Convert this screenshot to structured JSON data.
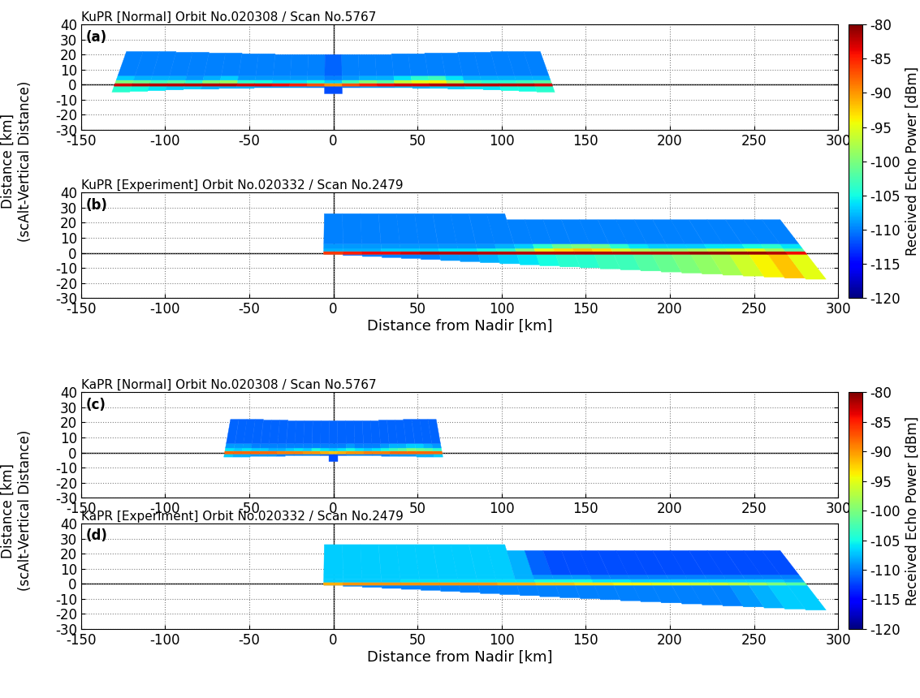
{
  "chart_data": [
    {
      "type": "heatmap",
      "label": "(a)",
      "title": "KuPR [Normal] Orbit No.020308 / Scan No.5767",
      "ylabel": "Distance [km]\n(scAlt-Vertical Distance)",
      "colorbar": {
        "label": "Received Echo Power [dBm]",
        "lim": [
          -120,
          -80
        ],
        "ticks": [
          -120,
          -115,
          -110,
          -105,
          -100,
          -95,
          -90,
          -85,
          -80
        ]
      },
      "xlim": [
        -150,
        300
      ],
      "xticks": [
        -150,
        -100,
        -50,
        0,
        50,
        100,
        150,
        200,
        250,
        300
      ],
      "ylim": [
        -30,
        40
      ],
      "yticks": [
        -30,
        -20,
        -10,
        0,
        10,
        20,
        30,
        40
      ],
      "grid": true,
      "y_edges": [
        -1,
        1,
        3,
        6
      ],
      "x": [
        -124.8,
        -114.4,
        -104.0,
        -93.6,
        -83.2,
        -72.8,
        -62.4,
        -52.0,
        -41.6,
        -31.2,
        -20.8,
        -10.4,
        0,
        10.4,
        20.8,
        31.2,
        41.6,
        52.0,
        62.4,
        72.8,
        83.2,
        93.6,
        104.0,
        114.4,
        124.8
      ],
      "top": [
        22,
        22,
        22,
        21.5,
        21.5,
        21,
        21,
        20.5,
        20.5,
        20,
        20,
        20,
        20,
        20,
        20,
        20,
        20.5,
        20.5,
        21,
        21,
        21.5,
        21.5,
        22,
        22,
        22
      ],
      "bottom": [
        -5,
        -4.5,
        -4,
        -3.5,
        -3,
        -3,
        -2.5,
        -2.5,
        -2,
        -2,
        -2,
        -2,
        -6,
        -2,
        -2,
        -2,
        -2,
        -2.5,
        -2.5,
        -3,
        -3,
        -3.5,
        -4,
        -4.5,
        -5
      ],
      "cells": [
        [
          -104,
          -83,
          -100,
          -107,
          -110
        ],
        [
          -105,
          -82,
          -101,
          -108,
          -110
        ],
        [
          -106,
          -82,
          -103,
          -108,
          -110
        ],
        [
          -107,
          -82,
          -102,
          -108,
          -110
        ],
        [
          -107,
          -82,
          -104,
          -109,
          -110
        ],
        [
          -108,
          -82,
          -100,
          -108,
          -110
        ],
        [
          -108,
          -82,
          -99,
          -107,
          -110
        ],
        [
          -108,
          -83,
          -104,
          -109,
          -110
        ],
        [
          -109,
          -83,
          -105,
          -109,
          -110
        ],
        [
          -109,
          -84,
          -106,
          -109,
          -110
        ],
        [
          -109,
          -85,
          -106,
          -109,
          -110
        ],
        [
          -110,
          -87,
          -105,
          -109,
          -110
        ],
        [
          -112,
          -90,
          -107,
          -110,
          -111
        ],
        [
          -110,
          -87,
          -103,
          -109,
          -110
        ],
        [
          -109,
          -85,
          -100,
          -108,
          -110
        ],
        [
          -109,
          -84,
          -102,
          -108,
          -110
        ],
        [
          -108,
          -83,
          -97,
          -106,
          -110
        ],
        [
          -108,
          -83,
          -95,
          -104,
          -110
        ],
        [
          -107,
          -82,
          -94,
          -103,
          -110
        ],
        [
          -107,
          -82,
          -98,
          -106,
          -110
        ],
        [
          -106,
          -82,
          -103,
          -108,
          -110
        ],
        [
          -106,
          -82,
          -104,
          -108,
          -110
        ],
        [
          -105,
          -82,
          -104,
          -108,
          -110
        ],
        [
          -105,
          -82,
          -103,
          -108,
          -110
        ],
        [
          -104,
          -83,
          -102,
          -108,
          -110
        ]
      ]
    },
    {
      "type": "heatmap",
      "label": "(b)",
      "title": "KuPR [Experiment] Orbit No.020332 / Scan No.2479",
      "xlabel": "Distance from Nadir [km]",
      "xlim": [
        -150,
        300
      ],
      "xticks": [
        -150,
        -100,
        -50,
        0,
        50,
        100,
        150,
        200,
        250,
        300
      ],
      "ylim": [
        -30,
        40
      ],
      "yticks": [
        -30,
        -20,
        -10,
        0,
        10,
        20,
        30,
        40
      ],
      "grid": true,
      "y_edges": [
        -1,
        1,
        3,
        6
      ],
      "x": [
        0,
        11.5,
        22.9,
        34.4,
        45.8,
        57.3,
        68.8,
        80.2,
        91.7,
        103.1,
        114.6,
        126.0,
        137.5,
        149.0,
        160.4,
        171.9,
        183.3,
        194.8,
        206.3,
        217.7,
        229.2,
        240.6,
        252.1,
        263.5,
        275.0
      ],
      "top": [
        26,
        26,
        26,
        26,
        26,
        26,
        26,
        26,
        26,
        26,
        22,
        22,
        22,
        22,
        22,
        22,
        22,
        22,
        22,
        22,
        22,
        22,
        22,
        22,
        22
      ],
      "bottom": [
        -1,
        -1.7,
        -2.4,
        -3.1,
        -3.7,
        -4.4,
        -5.1,
        -5.8,
        -6.5,
        -7.2,
        -7.9,
        -8.6,
        -9.3,
        -9.9,
        -10.6,
        -11.3,
        -12,
        -12.7,
        -13.4,
        -14.1,
        -14.8,
        -15.4,
        -16.1,
        -16.8,
        -17.5
      ],
      "cells": [
        [
          -111,
          -86,
          -108,
          -109,
          -110
        ],
        [
          -111,
          -85,
          -108,
          -109,
          -110
        ],
        [
          -110,
          -84,
          -108,
          -109,
          -110
        ],
        [
          -110,
          -84,
          -107,
          -109,
          -110
        ],
        [
          -110,
          -83,
          -107,
          -109,
          -110
        ],
        [
          -110,
          -82,
          -107,
          -109,
          -110
        ],
        [
          -109,
          -82,
          -106,
          -109,
          -110
        ],
        [
          -109,
          -82,
          -106,
          -109,
          -110
        ],
        [
          -108,
          -82,
          -105,
          -109,
          -110
        ],
        [
          -107,
          -82,
          -104,
          -108,
          -110
        ],
        [
          -106,
          -82,
          -100,
          -107,
          -110
        ],
        [
          -105,
          -82,
          -95,
          -104,
          -110
        ],
        [
          -104,
          -82,
          -93,
          -101,
          -110
        ],
        [
          -104,
          -82,
          -92,
          -100,
          -110
        ],
        [
          -103,
          -82,
          -93,
          -101,
          -110
        ],
        [
          -103,
          -82,
          -96,
          -104,
          -110
        ],
        [
          -102,
          -82,
          -98,
          -106,
          -110
        ],
        [
          -101,
          -82,
          -99,
          -107,
          -110
        ],
        [
          -100,
          -82,
          -99,
          -107,
          -110
        ],
        [
          -99,
          -81,
          -98,
          -107,
          -110
        ],
        [
          -98,
          -81,
          -97,
          -106,
          -110
        ],
        [
          -96,
          -81,
          -96,
          -106,
          -110
        ],
        [
          -94,
          -81,
          -95,
          -105,
          -110
        ],
        [
          -92,
          -82,
          -98,
          -104,
          -110
        ],
        [
          -95,
          -84,
          -102,
          -106,
          -110
        ]
      ]
    },
    {
      "type": "heatmap",
      "label": "(c)",
      "title": "KaPR [Normal] Orbit No.020308 / Scan No.5767",
      "ylabel": "Distance [km]\n(scAlt-Vertical Distance)",
      "colorbar": {
        "label": "Received Echo Power [dBm]",
        "lim": [
          -120,
          -80
        ],
        "ticks": [
          -120,
          -115,
          -110,
          -105,
          -100,
          -95,
          -90,
          -85,
          -80
        ]
      },
      "xlim": [
        -150,
        300
      ],
      "xticks": [
        -150,
        -100,
        -50,
        0,
        50,
        100,
        150,
        200,
        250,
        300
      ],
      "ylim": [
        -30,
        40
      ],
      "yticks": [
        -30,
        -20,
        -10,
        0,
        10,
        20,
        30,
        40
      ],
      "grid": true,
      "y_edges": [
        -1,
        1,
        3,
        6
      ],
      "x": [
        -62.0,
        -56.8,
        -51.7,
        -46.5,
        -41.3,
        -36.2,
        -31.0,
        -25.8,
        -20.7,
        -15.5,
        -10.3,
        -5.2,
        0,
        5.2,
        10.3,
        15.5,
        20.7,
        25.8,
        31.0,
        36.2,
        41.3,
        46.5,
        51.7,
        56.8,
        62.0
      ],
      "top": [
        22,
        22,
        22,
        22,
        21.5,
        21.5,
        21.5,
        21,
        21,
        21,
        21,
        21,
        21,
        21,
        21,
        21,
        21,
        21,
        21.5,
        21.5,
        21.5,
        22,
        22,
        22,
        22
      ],
      "bottom": [
        -3,
        -3,
        -3,
        -2.5,
        -2.5,
        -2.5,
        -2.5,
        -2,
        -2,
        -2,
        -2,
        -2,
        -6,
        -2,
        -2,
        -2,
        -2,
        -2,
        -2.5,
        -2.5,
        -2.5,
        -2.5,
        -3,
        -3,
        -3
      ],
      "cells": [
        [
          -107,
          -88,
          -106,
          -109,
          -111
        ],
        [
          -108,
          -88,
          -107,
          -109,
          -111
        ],
        [
          -108,
          -88,
          -106,
          -109,
          -111
        ],
        [
          -109,
          -88,
          -107,
          -110,
          -111
        ],
        [
          -109,
          -88,
          -107,
          -110,
          -111
        ],
        [
          -109,
          -88,
          -108,
          -110,
          -111
        ],
        [
          -110,
          -89,
          -108,
          -110,
          -111
        ],
        [
          -110,
          -89,
          -107,
          -110,
          -111
        ],
        [
          -110,
          -89,
          -106,
          -110,
          -111
        ],
        [
          -110,
          -90,
          -107,
          -110,
          -111
        ],
        [
          -110,
          -90,
          -105,
          -110,
          -111
        ],
        [
          -111,
          -91,
          -106,
          -110,
          -111
        ],
        [
          -112,
          -92,
          -107,
          -110,
          -111
        ],
        [
          -111,
          -91,
          -106,
          -110,
          -111
        ],
        [
          -110,
          -90,
          -105,
          -109,
          -111
        ],
        [
          -110,
          -90,
          -106,
          -110,
          -111
        ],
        [
          -110,
          -89,
          -107,
          -110,
          -111
        ],
        [
          -110,
          -89,
          -106,
          -110,
          -111
        ],
        [
          -110,
          -89,
          -105,
          -109,
          -111
        ],
        [
          -109,
          -88,
          -103,
          -108,
          -111
        ],
        [
          -109,
          -88,
          -102,
          -108,
          -111
        ],
        [
          -109,
          -88,
          -100,
          -107,
          -111
        ],
        [
          -108,
          -88,
          -101,
          -107,
          -111
        ],
        [
          -108,
          -88,
          -102,
          -108,
          -111
        ],
        [
          -107,
          -88,
          -104,
          -109,
          -111
        ]
      ]
    },
    {
      "type": "heatmap",
      "label": "(d)",
      "title": "KaPR [Experiment] Orbit No.020332 / Scan No.2479",
      "xlabel": "Distance from Nadir [km]",
      "xlim": [
        -150,
        300
      ],
      "xticks": [
        -150,
        -100,
        -50,
        0,
        50,
        100,
        150,
        200,
        250,
        300
      ],
      "ylim": [
        -30,
        40
      ],
      "yticks": [
        -30,
        -20,
        -10,
        0,
        10,
        20,
        30,
        40
      ],
      "grid": true,
      "y_edges": [
        -1,
        1,
        3,
        6
      ],
      "x": [
        0,
        11.5,
        22.9,
        34.4,
        45.8,
        57.3,
        68.8,
        80.2,
        91.7,
        103.1,
        114.6,
        126.0,
        137.5,
        149.0,
        160.4,
        171.9,
        183.3,
        194.8,
        206.3,
        217.7,
        229.2,
        240.6,
        252.1,
        263.5,
        275.0
      ],
      "top": [
        26,
        26,
        26,
        26,
        26,
        26,
        26,
        26,
        26,
        26,
        22,
        22,
        22,
        22,
        22,
        22,
        22,
        22,
        22,
        22,
        22,
        22,
        22,
        22,
        22
      ],
      "bottom": [
        -1,
        -1.7,
        -2.4,
        -3.1,
        -3.7,
        -4.4,
        -5.1,
        -5.8,
        -6.5,
        -7.2,
        -7.9,
        -8.6,
        -9.3,
        -9.9,
        -10.6,
        -11.3,
        -12,
        -12.7,
        -13.4,
        -14.1,
        -14.8,
        -15.4,
        -16.1,
        -16.8,
        -17.5
      ],
      "cells": [
        [
          -110,
          -91,
          -107,
          -107,
          -107
        ],
        [
          -110,
          -90,
          -107,
          -107,
          -107
        ],
        [
          -110,
          -90,
          -107,
          -107,
          -107
        ],
        [
          -110,
          -90,
          -107,
          -107,
          -107
        ],
        [
          -110,
          -90,
          -106,
          -107,
          -107
        ],
        [
          -110,
          -90,
          -106,
          -107,
          -107
        ],
        [
          -110,
          -90,
          -106,
          -107,
          -107
        ],
        [
          -110,
          -90,
          -106,
          -107,
          -107
        ],
        [
          -110,
          -90,
          -106,
          -107,
          -107
        ],
        [
          -110,
          -91,
          -106,
          -107,
          -107
        ],
        [
          -110,
          -91,
          -106,
          -108,
          -108
        ],
        [
          -110,
          -92,
          -105,
          -109,
          -111
        ],
        [
          -110,
          -92,
          -105,
          -109,
          -112
        ],
        [
          -110,
          -93,
          -105,
          -109,
          -112
        ],
        [
          -110,
          -93,
          -106,
          -110,
          -112
        ],
        [
          -110,
          -94,
          -106,
          -110,
          -112
        ],
        [
          -110,
          -94,
          -107,
          -110,
          -112
        ],
        [
          -110,
          -95,
          -107,
          -110,
          -112
        ],
        [
          -110,
          -95,
          -107,
          -110,
          -112
        ],
        [
          -110,
          -96,
          -107,
          -110,
          -112
        ],
        [
          -110,
          -96,
          -107,
          -110,
          -112
        ],
        [
          -109,
          -97,
          -107,
          -110,
          -112
        ],
        [
          -108,
          -98,
          -107,
          -110,
          -112
        ],
        [
          -107,
          -100,
          -107,
          -110,
          -112
        ],
        [
          -107,
          -102,
          -108,
          -110,
          -112
        ]
      ]
    }
  ]
}
